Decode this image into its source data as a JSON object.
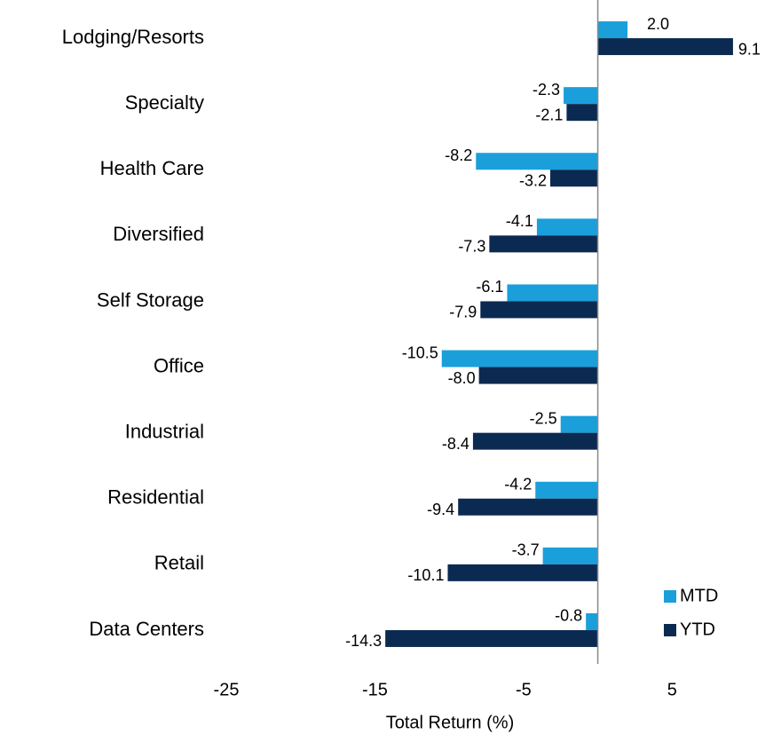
{
  "chart_data": {
    "type": "barh",
    "categories": [
      "Lodging/Resorts",
      "Specialty",
      "Health Care",
      "Diversified",
      "Self Storage",
      "Office",
      "Industrial",
      "Residential",
      "Retail",
      "Data Centers"
    ],
    "series": [
      {
        "name": "MTD",
        "color": "#1a9fdb",
        "values": [
          2.0,
          -2.3,
          -8.2,
          -4.1,
          -6.1,
          -10.5,
          -2.5,
          -4.2,
          -3.7,
          -0.8
        ],
        "value_labels": [
          "2.0",
          "-2.3",
          "-8.2",
          "-4.1",
          "-6.1",
          "-10.5",
          "-2.5",
          "-4.2",
          "-3.7",
          "-0.8"
        ]
      },
      {
        "name": "YTD",
        "color": "#0b2a52",
        "values": [
          9.1,
          -2.1,
          -3.2,
          -7.3,
          -7.9,
          -8.0,
          -8.4,
          -9.4,
          -10.1,
          -14.3
        ],
        "value_labels": [
          "9.1",
          "-2.1",
          "-3.2",
          "-7.3",
          "-7.9",
          "-8.0",
          "-8.4",
          "-9.4",
          "-10.1",
          "-14.3"
        ]
      }
    ],
    "xlabel": "Total Return (%)",
    "xlim": [
      -25,
      10
    ],
    "xticks": [
      -25,
      -15,
      -5,
      5
    ],
    "legend": "lower right",
    "grid": false
  }
}
